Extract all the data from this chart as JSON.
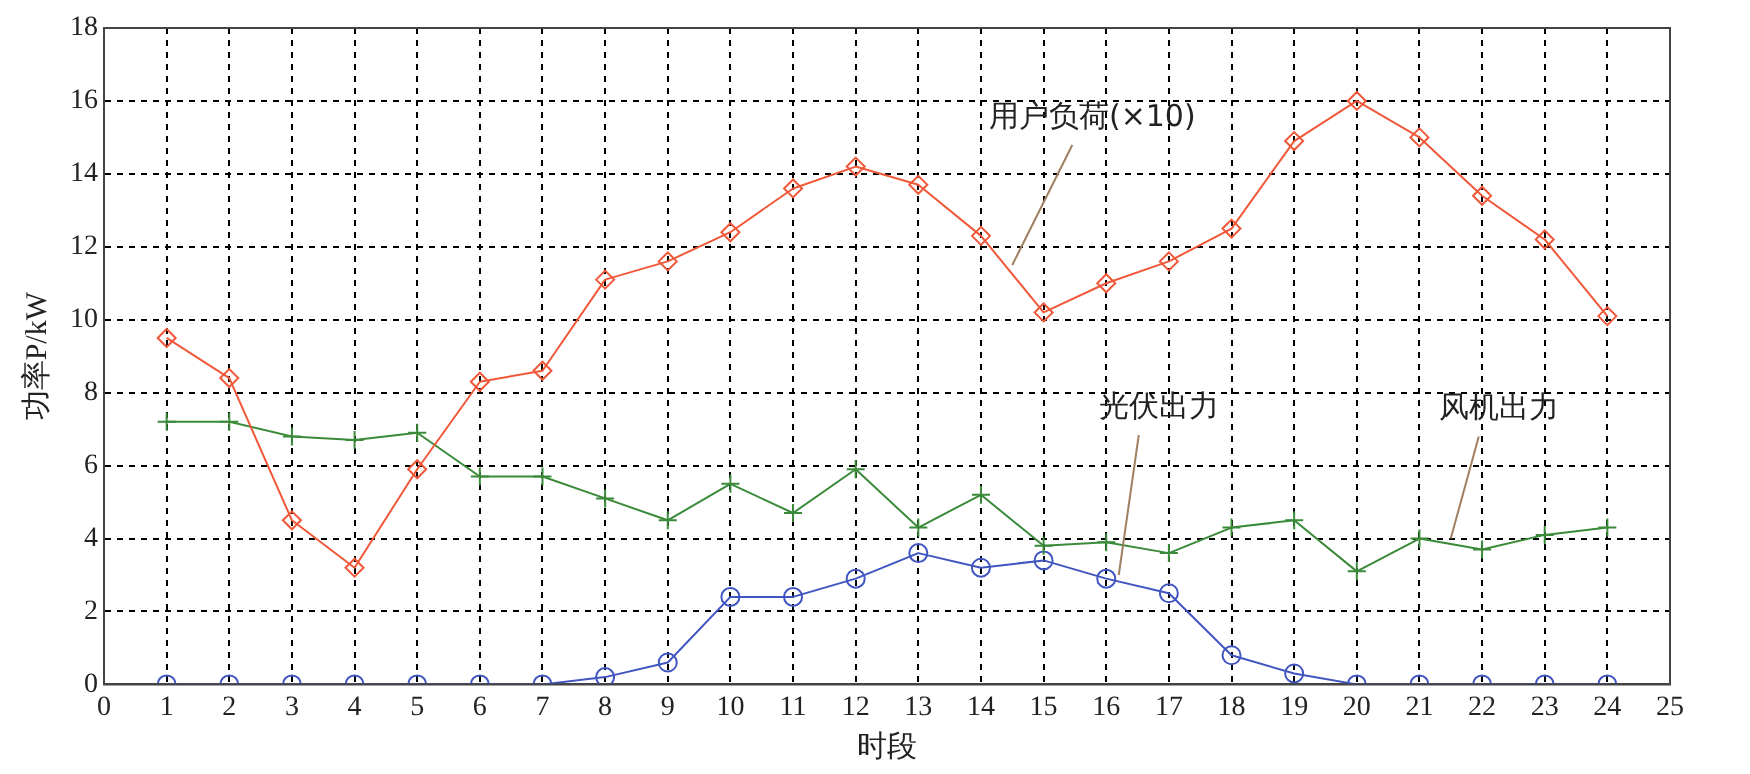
{
  "chart_data": {
    "type": "line",
    "xlabel": "时段",
    "ylabel": "功率P/kW",
    "x": [
      1,
      2,
      3,
      4,
      5,
      6,
      7,
      8,
      9,
      10,
      11,
      12,
      13,
      14,
      15,
      16,
      17,
      18,
      19,
      20,
      21,
      22,
      23,
      24
    ],
    "xlim": [
      0,
      25
    ],
    "xticks": [
      0,
      1,
      2,
      3,
      4,
      5,
      6,
      7,
      8,
      9,
      10,
      11,
      12,
      13,
      14,
      15,
      16,
      17,
      18,
      19,
      20,
      21,
      22,
      23,
      24,
      25
    ],
    "ylim": [
      0,
      18
    ],
    "yticks": [
      0,
      2,
      4,
      6,
      8,
      10,
      12,
      14,
      16,
      18
    ],
    "grid": true,
    "legend": false,
    "line_style": "solid",
    "series": [
      {
        "color": "#f0583a",
        "marker": "diamond",
        "values": [
          9.5,
          8.4,
          4.5,
          3.2,
          5.9,
          8.3,
          8.6,
          11.1,
          11.6,
          12.4,
          13.6,
          14.2,
          13.7,
          12.3,
          10.2,
          11.0,
          11.6,
          12.5,
          14.9,
          16.0,
          15.0,
          13.4,
          12.2,
          10.1
        ]
      },
      {
        "color": "#3a8a3a",
        "marker": "cross",
        "values": [
          7.2,
          7.2,
          6.8,
          6.7,
          6.9,
          5.7,
          5.7,
          5.1,
          4.5,
          5.5,
          4.7,
          5.9,
          4.3,
          5.2,
          3.8,
          3.9,
          3.6,
          4.3,
          4.5,
          3.1,
          4.0,
          3.7,
          4.1,
          4.3
        ]
      },
      {
        "color": "#4055c0",
        "marker": "circle",
        "values": [
          0,
          0,
          0,
          0,
          0,
          0,
          0,
          0.2,
          0.6,
          2.4,
          2.4,
          2.9,
          3.6,
          3.2,
          3.4,
          2.9,
          2.5,
          0.8,
          0.3,
          0,
          0,
          0,
          0,
          0
        ]
      }
    ],
    "annotations": [
      {
        "text": "用户负荷(×10)",
        "x": 14.5,
        "y": 11.5
      },
      {
        "text": "光伏出力",
        "x": 16.2,
        "y": 3.0
      },
      {
        "text": "风机出力",
        "x": 21.5,
        "y": 4.0
      }
    ]
  }
}
